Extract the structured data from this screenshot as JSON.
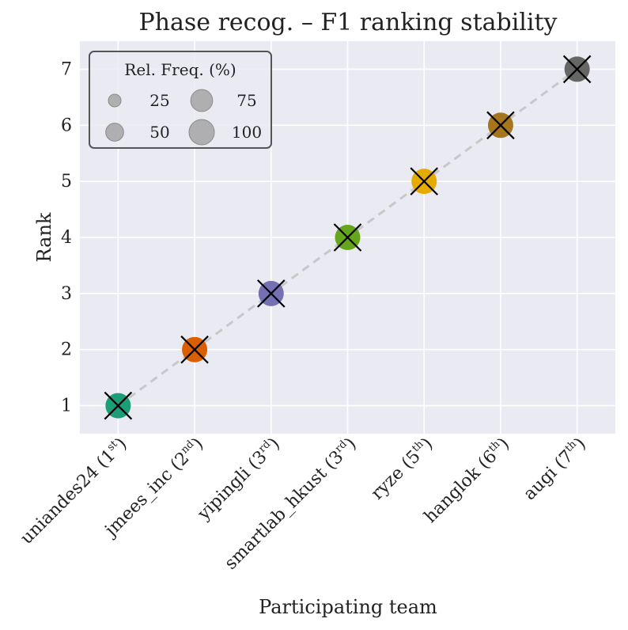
{
  "chart_data": {
    "type": "scatter",
    "title": "Phase recog. – F1 ranking stability",
    "xlabel": "Participating team",
    "ylabel": "Rank",
    "ylim": [
      0.5,
      7.5
    ],
    "yticks": [
      1,
      2,
      3,
      4,
      5,
      6,
      7
    ],
    "grid": true,
    "legend_position": "top-left",
    "categories": [
      {
        "name": "uniandes24",
        "place": "1",
        "suffix": "st",
        "color": "#1b9e77"
      },
      {
        "name": "jmees_inc",
        "place": "2",
        "suffix": "nd",
        "color": "#d95f02"
      },
      {
        "name": "yipingli",
        "place": "3",
        "suffix": "rd",
        "color": "#7570b3"
      },
      {
        "name": "smartlab_hkust",
        "place": "3",
        "suffix": "rd",
        "color": "#66a61e"
      },
      {
        "name": "ryze",
        "place": "5",
        "suffix": "th",
        "color": "#e6ab02"
      },
      {
        "name": "hanglok",
        "place": "6",
        "suffix": "th",
        "color": "#a6761d"
      },
      {
        "name": "augi",
        "place": "7",
        "suffix": "th",
        "color": "#666666"
      }
    ],
    "points": [
      {
        "team": "uniandes24",
        "rank": 1,
        "rel_freq": 100
      },
      {
        "team": "jmees_inc",
        "rank": 2,
        "rel_freq": 100
      },
      {
        "team": "yipingli",
        "rank": 3,
        "rel_freq": 100
      },
      {
        "team": "smartlab_hkust",
        "rank": 4,
        "rel_freq": 100
      },
      {
        "team": "ryze",
        "rank": 5,
        "rel_freq": 100
      },
      {
        "team": "hanglok",
        "rank": 6,
        "rel_freq": 100
      },
      {
        "team": "augi",
        "rank": 7,
        "rel_freq": 100
      }
    ],
    "observed_ranks": [
      1,
      2,
      3,
      4,
      5,
      6,
      7
    ],
    "legend": {
      "title": "Rel. Freq. (%)",
      "entries": [
        25,
        75,
        50,
        100
      ]
    },
    "colors": {
      "background": "#eaeaf2",
      "grid": "#ffffff",
      "diagonal": "#c8c8c8",
      "marker_x": "#000000",
      "legend_marker": "#a0a0a0"
    }
  }
}
